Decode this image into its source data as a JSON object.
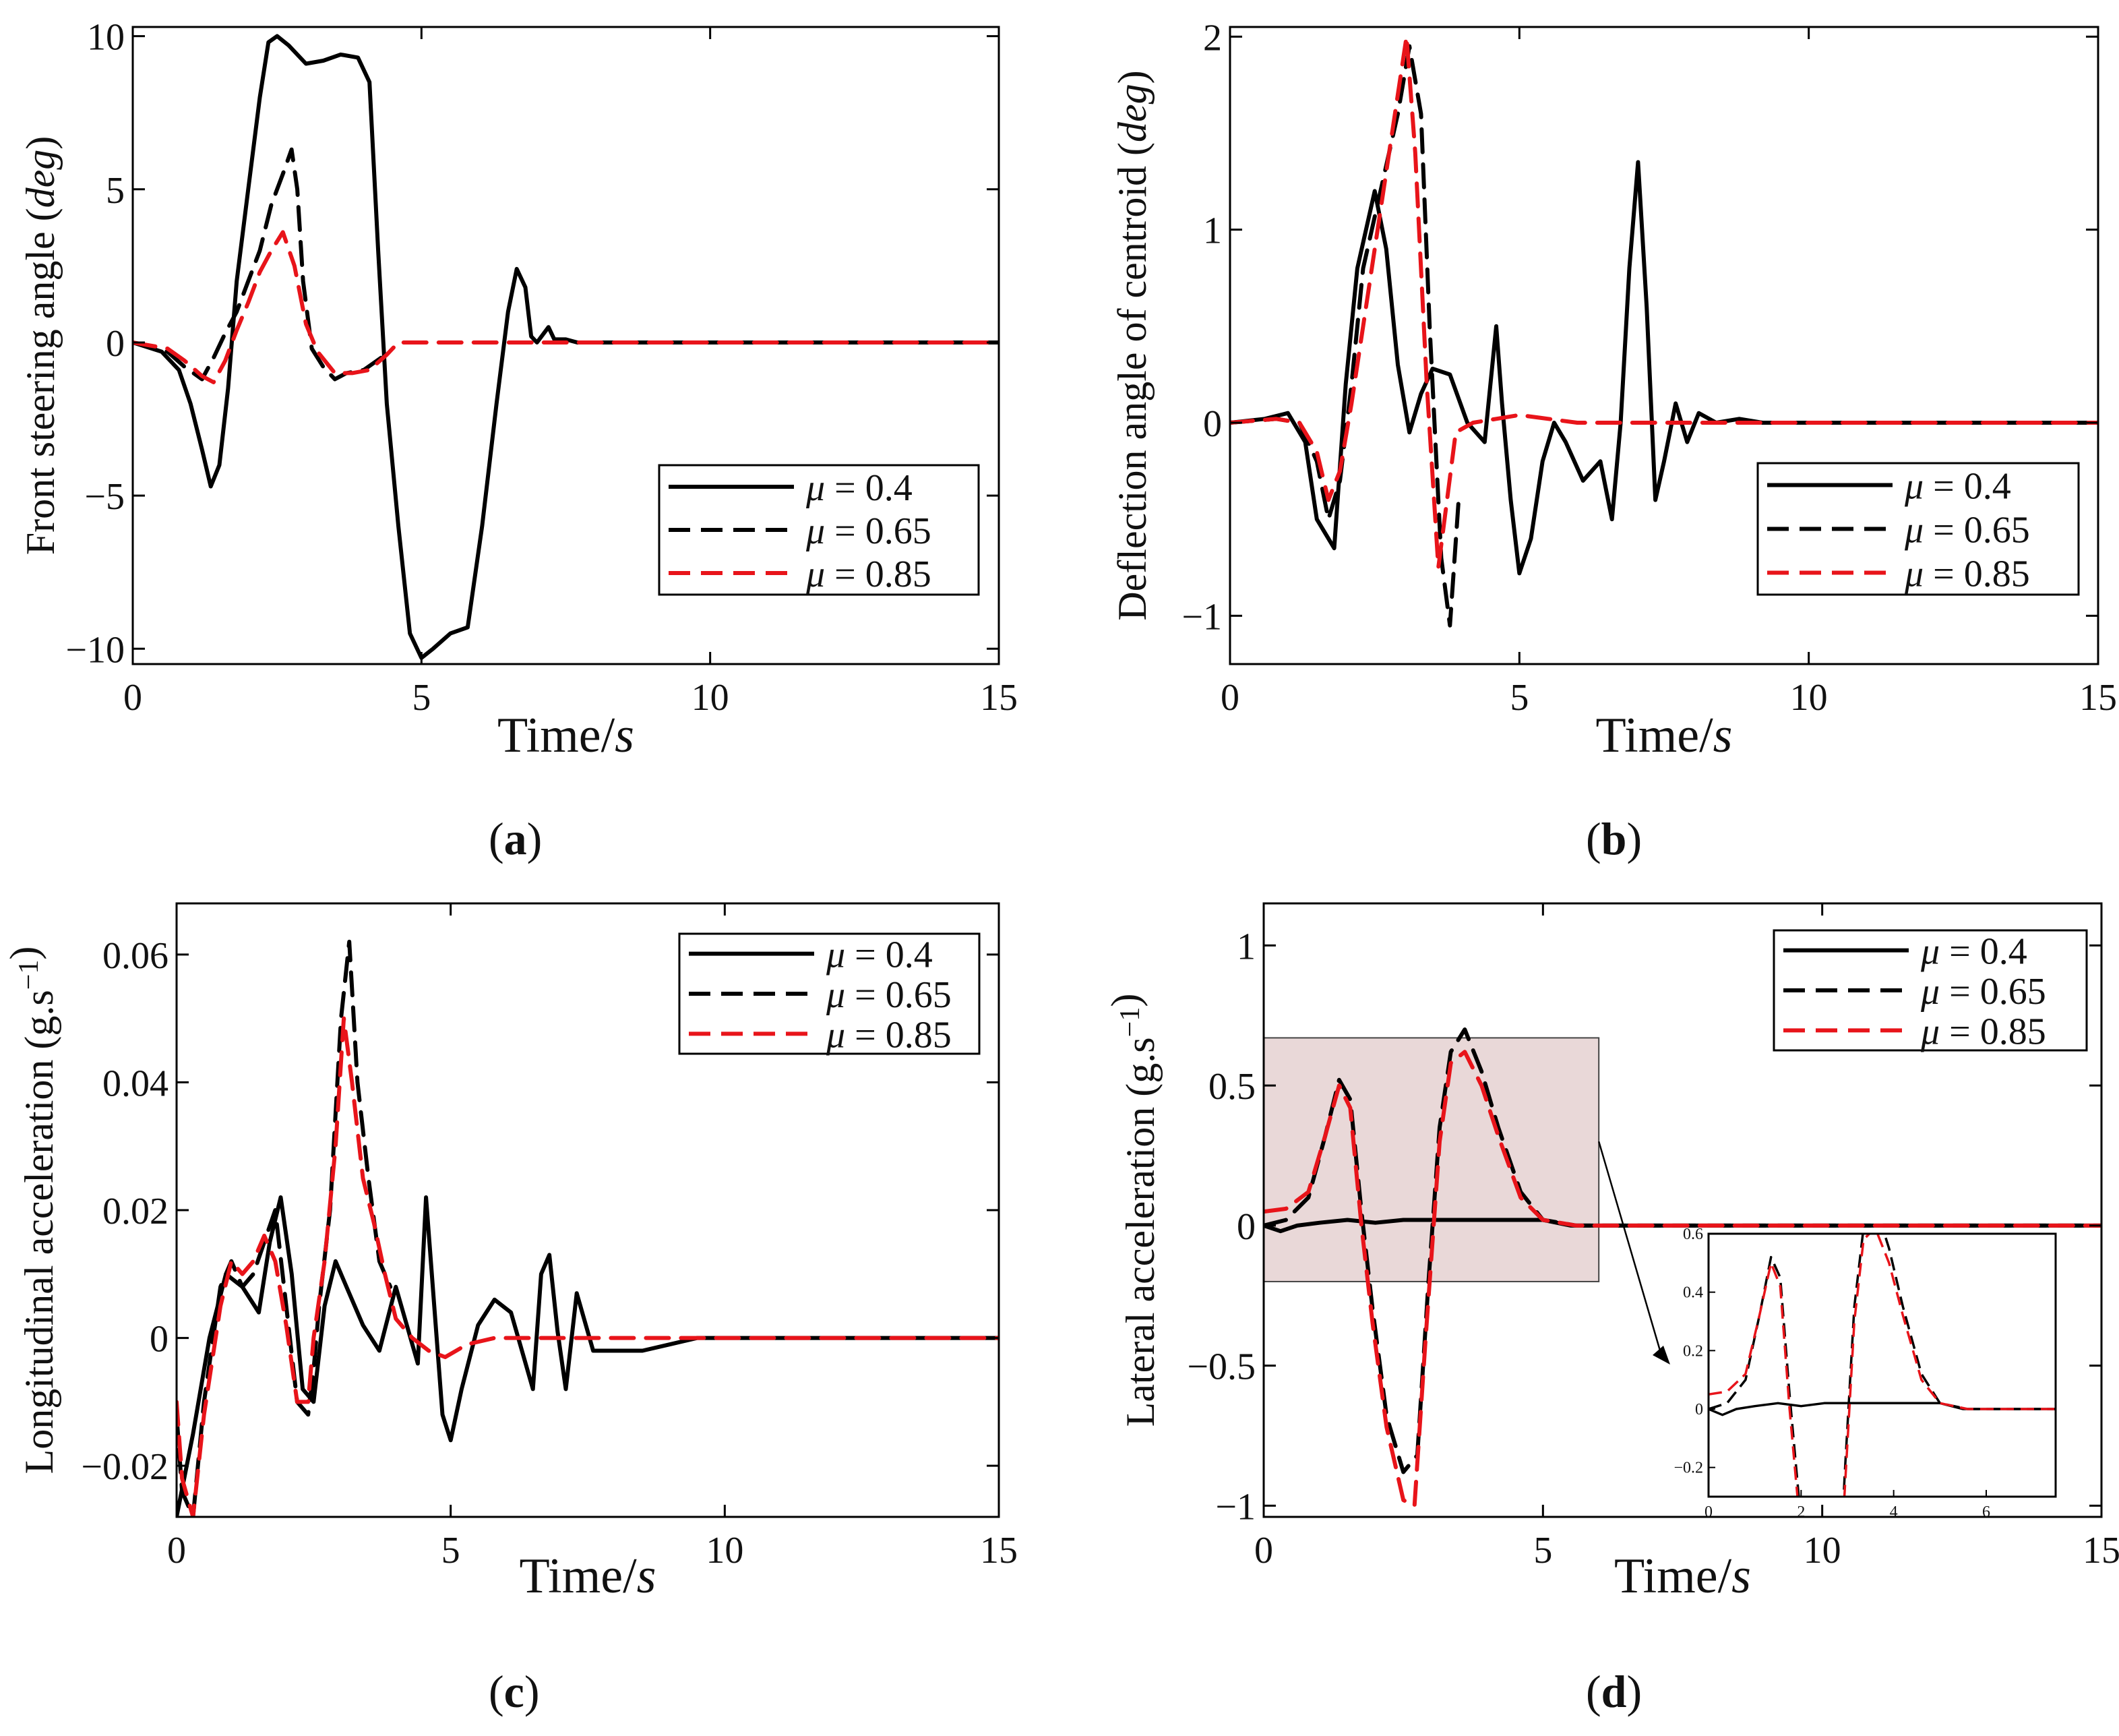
{
  "chart_data": [
    {
      "type": "line",
      "panel": "a",
      "caption_letter": "a",
      "ylabel_main": "Front steering angle (",
      "ylabel_unit": "deg",
      "ylabel_close": ")",
      "xlabel_main": "Time/",
      "xlabel_unit": "s",
      "xlim": [
        0,
        15
      ],
      "ylim": [
        -10.5,
        10.3
      ],
      "xticks": [
        0,
        5,
        10,
        15
      ],
      "yticks": [
        -10,
        -5,
        0,
        5,
        10
      ],
      "ytick_labels": [
        "−10",
        "−5",
        "0",
        "5",
        "10"
      ],
      "legend_position": "bottom-right",
      "series": [
        {
          "name": "μ = 0.4",
          "color": "#000000",
          "dash": "solid",
          "x": [
            0,
            0.5,
            0.8,
            1.0,
            1.2,
            1.35,
            1.5,
            1.65,
            1.8,
            2.0,
            2.2,
            2.35,
            2.5,
            2.7,
            3.0,
            3.3,
            3.6,
            3.9,
            4.1,
            4.25,
            4.4,
            4.6,
            4.8,
            5.0,
            5.2,
            5.5,
            5.8,
            6.05,
            6.3,
            6.5,
            6.65,
            6.8,
            6.9,
            7.0,
            7.2,
            7.3,
            7.5,
            7.7,
            8,
            15
          ],
          "y": [
            0,
            -0.3,
            -0.9,
            -2,
            -3.5,
            -4.7,
            -4,
            -1.5,
            2,
            5,
            8,
            9.8,
            10,
            9.7,
            9.1,
            9.2,
            9.4,
            9.3,
            8.5,
            3,
            -2,
            -6,
            -9.5,
            -10.3,
            -10,
            -9.5,
            -9.3,
            -6,
            -2,
            1,
            2.4,
            1.8,
            0.2,
            0,
            0.5,
            0.1,
            0.1,
            0,
            0,
            0
          ]
        },
        {
          "name": "μ = 0.65",
          "color": "#000000",
          "dash": "long",
          "x": [
            0,
            0.6,
            0.9,
            1.2,
            1.4,
            1.6,
            1.8,
            2.0,
            2.2,
            2.4,
            2.6,
            2.75,
            2.85,
            2.95,
            3.1,
            3.3,
            3.5,
            3.7,
            4.0,
            4.3
          ],
          "y": [
            0,
            -0.3,
            -0.8,
            -1.2,
            -0.5,
            0.3,
            1,
            2,
            3,
            4.5,
            5.5,
            6.3,
            5,
            2,
            -0.2,
            -0.8,
            -1.2,
            -1,
            -0.9,
            -0.5
          ]
        },
        {
          "name": "μ = 0.85",
          "color": "#e8141a",
          "dash": "long",
          "x": [
            0,
            0.6,
            0.9,
            1.2,
            1.4,
            1.6,
            1.8,
            2.0,
            2.2,
            2.4,
            2.6,
            2.8,
            3.0,
            3.2,
            3.5,
            3.8,
            4.1,
            4.4,
            4.6,
            5,
            6,
            15
          ],
          "y": [
            0,
            -0.2,
            -0.6,
            -1.1,
            -1.3,
            -0.6,
            0.4,
            1.3,
            2.3,
            3,
            3.6,
            2.5,
            0.6,
            -0.3,
            -1,
            -1,
            -0.9,
            -0.4,
            0,
            0,
            0,
            0
          ]
        }
      ]
    },
    {
      "type": "line",
      "panel": "b",
      "caption_letter": "b",
      "ylabel_main": "Deflection angle of centroid (",
      "ylabel_unit": "deg",
      "ylabel_close": ")",
      "xlabel_main": "Time/",
      "xlabel_unit": "s",
      "xlim": [
        0,
        15
      ],
      "ylim": [
        -1.25,
        2.05
      ],
      "xticks": [
        0,
        5,
        10,
        15
      ],
      "yticks": [
        -1,
        0,
        1,
        2
      ],
      "ytick_labels": [
        "−1",
        "0",
        "1",
        "2"
      ],
      "legend_position": "bottom-right",
      "series": [
        {
          "name": "μ = 0.4",
          "color": "#000000",
          "dash": "solid",
          "x": [
            0,
            0.6,
            1.0,
            1.3,
            1.5,
            1.8,
            2.0,
            2.2,
            2.5,
            2.7,
            2.9,
            3.1,
            3.3,
            3.5,
            3.8,
            4.1,
            4.4,
            4.6,
            4.7,
            4.85,
            5.0,
            5.2,
            5.4,
            5.6,
            5.8,
            6.1,
            6.4,
            6.6,
            6.75,
            6.9,
            7.05,
            7.2,
            7.35,
            7.5,
            7.7,
            7.9,
            8.1,
            8.4,
            8.8,
            9.2,
            15
          ],
          "y": [
            0,
            0.02,
            0.05,
            -0.1,
            -0.5,
            -0.65,
            0.2,
            0.8,
            1.2,
            0.9,
            0.3,
            -0.05,
            0.15,
            0.28,
            0.25,
            0,
            -0.1,
            0.5,
            0.1,
            -0.4,
            -0.78,
            -0.6,
            -0.2,
            0,
            -0.1,
            -0.3,
            -0.2,
            -0.5,
            0,
            0.8,
            1.35,
            0.6,
            -0.4,
            -0.2,
            0.1,
            -0.1,
            0.05,
            0,
            0.02,
            0,
            0
          ]
        },
        {
          "name": "μ = 0.65",
          "color": "#000000",
          "dash": "long",
          "x": [
            0,
            0.8,
            1.2,
            1.5,
            1.7,
            1.9,
            2.1,
            2.3,
            2.6,
            2.9,
            3.1,
            3.3,
            3.45,
            3.65,
            3.8,
            3.95
          ],
          "y": [
            0,
            0.02,
            0,
            -0.2,
            -0.5,
            -0.3,
            0.2,
            0.8,
            1.2,
            1.6,
            1.95,
            1.6,
            0.5,
            -0.7,
            -1.05,
            -0.4
          ]
        },
        {
          "name": "μ = 0.85",
          "color": "#e8141a",
          "dash": "long",
          "x": [
            0,
            0.8,
            1.2,
            1.5,
            1.7,
            1.9,
            2.1,
            2.3,
            2.6,
            2.9,
            3.05,
            3.2,
            3.4,
            3.6,
            3.75,
            3.9,
            4.2,
            4.6,
            5.0,
            5.5,
            6,
            15
          ],
          "y": [
            0,
            0.02,
            0,
            -0.15,
            -0.4,
            -0.25,
            0.1,
            0.5,
            1.1,
            1.7,
            2.0,
            1.4,
            0.2,
            -0.75,
            -0.4,
            -0.05,
            0,
            0.02,
            0.04,
            0.02,
            0,
            0
          ]
        }
      ]
    },
    {
      "type": "line",
      "panel": "c",
      "caption_letter": "c",
      "ylabel_main": "Longitudinal acceleration (g.s",
      "ylabel_sup": "−1",
      "ylabel_close": ")",
      "xlabel_main": "Time/",
      "xlabel_unit": "s",
      "xlim": [
        0,
        15
      ],
      "ylim": [
        -0.028,
        0.068
      ],
      "xticks": [
        0,
        5,
        10,
        15
      ],
      "yticks": [
        -0.02,
        0,
        0.02,
        0.04,
        0.06
      ],
      "ytick_labels": [
        "−0.02",
        "0",
        "0.02",
        "0.04",
        "0.06"
      ],
      "legend_position": "top-right",
      "series": [
        {
          "name": "μ = 0.4",
          "color": "#000000",
          "dash": "solid",
          "x": [
            0,
            0.3,
            0.6,
            0.9,
            1.2,
            1.5,
            1.7,
            1.9,
            2.1,
            2.3,
            2.5,
            2.7,
            2.9,
            3.1,
            3.4,
            3.7,
            4.0,
            4.2,
            4.4,
            4.55,
            4.7,
            4.85,
            5.0,
            5.2,
            5.5,
            5.8,
            6.1,
            6.3,
            6.5,
            6.65,
            6.8,
            6.95,
            7.1,
            7.3,
            7.6,
            8,
            8.5,
            9,
            9.5,
            15
          ],
          "y": [
            -0.028,
            -0.015,
            0,
            0.01,
            0.008,
            0.004,
            0.015,
            0.022,
            0.01,
            -0.008,
            -0.01,
            0.005,
            0.012,
            0.008,
            0.002,
            -0.002,
            0.008,
            0.002,
            -0.004,
            0.022,
            0.005,
            -0.012,
            -0.016,
            -0.008,
            0.002,
            0.006,
            0.004,
            -0.002,
            -0.008,
            0.01,
            0.013,
            0.001,
            -0.008,
            0.007,
            -0.002,
            -0.002,
            -0.002,
            -0.001,
            0,
            0
          ]
        },
        {
          "name": "μ = 0.65",
          "color": "#000000",
          "dash": "long",
          "x": [
            0,
            0.1,
            0.3,
            0.5,
            0.8,
            1.0,
            1.2,
            1.4,
            1.6,
            1.8,
            2.0,
            2.2,
            2.4,
            2.5,
            2.6,
            2.8,
            3.0,
            3.15,
            3.3,
            3.5,
            3.7,
            3.9
          ],
          "y": [
            -0.012,
            -0.024,
            -0.028,
            -0.01,
            0.008,
            0.012,
            0.008,
            0.01,
            0.015,
            0.02,
            0.005,
            -0.01,
            -0.012,
            -0.005,
            0.005,
            0.02,
            0.05,
            0.062,
            0.04,
            0.025,
            0.012,
            0.008
          ]
        },
        {
          "name": "μ = 0.85",
          "color": "#e8141a",
          "dash": "long",
          "x": [
            0,
            0.1,
            0.3,
            0.5,
            0.8,
            1.0,
            1.2,
            1.4,
            1.6,
            1.8,
            2.0,
            2.2,
            2.4,
            2.5,
            2.7,
            2.9,
            3.05,
            3.2,
            3.4,
            3.6,
            3.8,
            4.0,
            4.3,
            4.6,
            4.9,
            5.3,
            5.8,
            6.5,
            7.5,
            15
          ],
          "y": [
            -0.01,
            -0.022,
            -0.028,
            -0.012,
            0.005,
            0.012,
            0.01,
            0.012,
            0.016,
            0.012,
            0.002,
            -0.01,
            -0.01,
            0,
            0.012,
            0.03,
            0.05,
            0.04,
            0.025,
            0.018,
            0.01,
            0.003,
            0,
            -0.002,
            -0.003,
            -0.001,
            0,
            0,
            0,
            0
          ]
        }
      ]
    },
    {
      "type": "line",
      "panel": "d",
      "caption_letter": "d",
      "ylabel_main": "Lateral acceleration (g.s",
      "ylabel_sup": "−1",
      "ylabel_close": ")",
      "xlabel_main": "Time/",
      "xlabel_unit": "s",
      "xlim": [
        0,
        15
      ],
      "ylim": [
        -1.04,
        1.15
      ],
      "xticks": [
        0,
        5,
        10,
        15
      ],
      "yticks": [
        -1,
        -0.5,
        0,
        0.5,
        1
      ],
      "ytick_labels": [
        "−1",
        "−0.5",
        "0",
        "0.5",
        "1"
      ],
      "legend_position": "top-right",
      "series": [
        {
          "name": "μ = 0.4",
          "color": "#000000",
          "dash": "solid",
          "x": [
            0,
            0.3,
            0.6,
            1.0,
            1.5,
            2.0,
            2.5,
            3.0,
            3.5,
            4.0,
            4.5,
            5.0,
            5.5,
            6,
            15
          ],
          "y": [
            0,
            -0.02,
            0,
            0.01,
            0.02,
            0.01,
            0.02,
            0.02,
            0.02,
            0.02,
            0.02,
            0.02,
            0,
            0,
            0
          ]
        },
        {
          "name": "μ = 0.65",
          "color": "#000000",
          "dash": "long",
          "x": [
            0,
            0.4,
            0.8,
            1.1,
            1.35,
            1.55,
            1.75,
            1.95,
            2.2,
            2.5,
            2.75,
            2.95,
            3.15,
            3.35,
            3.6,
            3.9,
            4.2,
            4.6,
            5.0,
            5.6,
            6.5,
            15
          ],
          "y": [
            0,
            0.02,
            0.1,
            0.32,
            0.52,
            0.45,
            0.05,
            -0.3,
            -0.68,
            -0.88,
            -0.82,
            -0.2,
            0.35,
            0.62,
            0.7,
            0.55,
            0.35,
            0.12,
            0.02,
            0,
            0,
            0
          ]
        },
        {
          "name": "μ = 0.85",
          "color": "#e8141a",
          "dash": "long",
          "x": [
            0,
            0.4,
            0.8,
            1.1,
            1.35,
            1.55,
            1.75,
            1.95,
            2.2,
            2.5,
            2.7,
            2.9,
            3.15,
            3.35,
            3.6,
            3.9,
            4.2,
            4.6,
            5.0,
            5.6,
            6.5,
            15
          ],
          "y": [
            0.05,
            0.06,
            0.12,
            0.32,
            0.5,
            0.42,
            0,
            -0.35,
            -0.72,
            -0.98,
            -1.0,
            -0.4,
            0.3,
            0.58,
            0.62,
            0.5,
            0.32,
            0.1,
            0.02,
            0,
            0,
            0
          ]
        }
      ],
      "inset": {
        "xlim": [
          0,
          7.5
        ],
        "ylim": [
          -0.3,
          0.6
        ],
        "xticks": [
          0,
          2,
          4,
          6
        ],
        "yticks": [
          -0.2,
          0,
          0.2,
          0.4,
          0.6
        ],
        "ytick_labels": [
          "−0.2",
          "0",
          "0.2",
          "0.4",
          "0.6"
        ],
        "highlight_xlim": [
          0,
          6
        ],
        "highlight_ylim": [
          -0.2,
          0.67
        ]
      }
    }
  ]
}
